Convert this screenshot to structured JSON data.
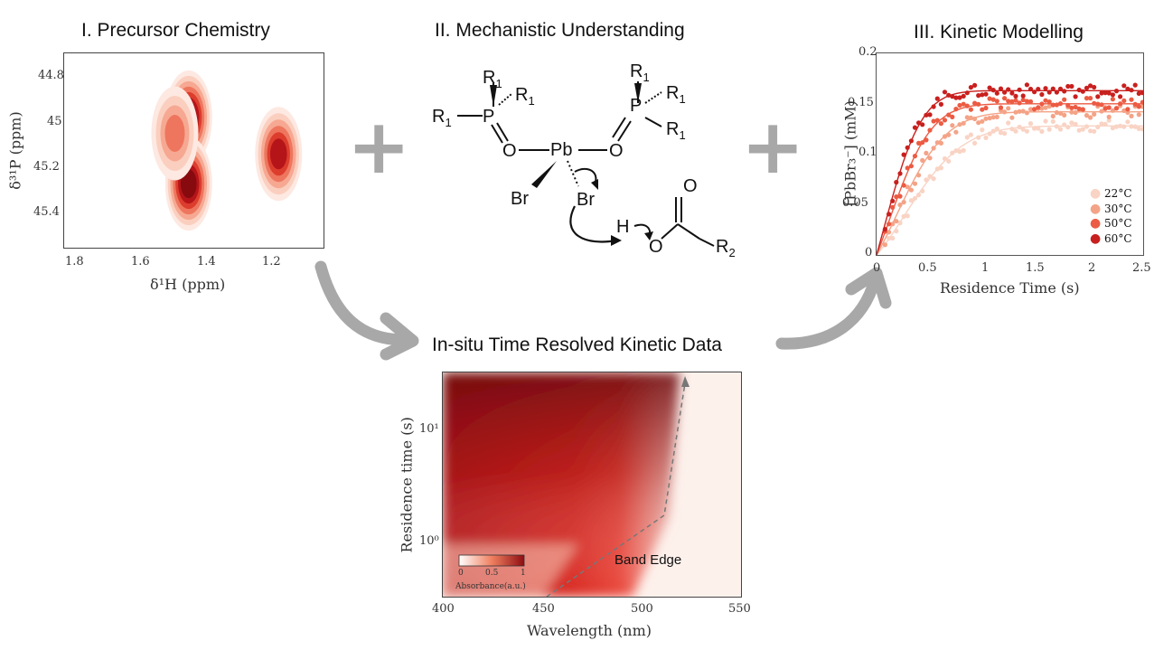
{
  "headings": {
    "precursor": "I. Precursor Chemistry",
    "mechanism": "II. Mechanistic Understanding",
    "kinetic_modelling": "III. Kinetic Modelling",
    "insitu": "In-situ Time Resolved Kinetic Data"
  },
  "colors": {
    "accent_red": "#c0201c",
    "arrow_gray": "#a8a8a8"
  },
  "icons": {
    "plus": "+",
    "curved_arrow": "curved-arrow"
  },
  "chart_data": [
    {
      "type": "heatmap",
      "title": "",
      "xlabel": "δ¹H (ppm)",
      "ylabel": "δ³¹P (ppm)",
      "x_ticks": [
        "1.8",
        "1.6",
        "1.4",
        "1.2"
      ],
      "y_ticks": [
        "44.8",
        "45",
        "45.2",
        "45.4"
      ],
      "xlim": [
        1.85,
        1.1
      ],
      "ylim": [
        44.7,
        45.55
      ],
      "peaks": [
        {
          "x": 1.49,
          "y": 44.98,
          "intensity": 1.0
        },
        {
          "x": 1.49,
          "y": 45.27,
          "intensity": 1.0
        },
        {
          "x": 1.53,
          "y": 45.05,
          "intensity": 0.55
        },
        {
          "x": 1.23,
          "y": 45.14,
          "intensity": 0.85
        }
      ]
    },
    {
      "type": "heatmap",
      "title": "",
      "xlabel": "Wavelength (nm)",
      "ylabel": "Residence time (s)",
      "x_ticks": [
        "400",
        "450",
        "500",
        "550"
      ],
      "y_ticks": [
        "10¹",
        "10⁰"
      ],
      "xlim": [
        400,
        550
      ],
      "colorbar": {
        "label": "Absorbance(a.u.)",
        "ticks": [
          "0",
          "0.5",
          "1"
        ]
      },
      "annotation": "Band Edge"
    },
    {
      "type": "scatter",
      "title": "",
      "xlabel": "Residence Time (s)",
      "ylabel": "[PbBr₃⁻] (mM)",
      "x_ticks": [
        "0",
        "0.5",
        "1",
        "1.5",
        "2",
        "2.5"
      ],
      "y_ticks": [
        "0",
        "0.05",
        "0.1",
        "0.15",
        "0.2"
      ],
      "xlim": [
        0,
        2.5
      ],
      "ylim": [
        0,
        0.2
      ],
      "legend_position": "bottom-right",
      "series": [
        {
          "name": "22°C",
          "color": "#f9d3c4",
          "plateau": 0.128,
          "rate": 1.9
        },
        {
          "name": "30°C",
          "color": "#f4a387",
          "plateau": 0.142,
          "rate": 2.6
        },
        {
          "name": "50°C",
          "color": "#ec5b43",
          "plateau": 0.15,
          "rate": 3.6
        },
        {
          "name": "60°C",
          "color": "#c8201e",
          "plateau": 0.163,
          "rate": 4.6
        }
      ]
    }
  ],
  "chemistry": {
    "r1": "R",
    "sub1": "1",
    "r2": "R",
    "sub2": "2",
    "p": "P",
    "o": "O",
    "pb": "Pb",
    "br": "Br",
    "h": "H"
  }
}
